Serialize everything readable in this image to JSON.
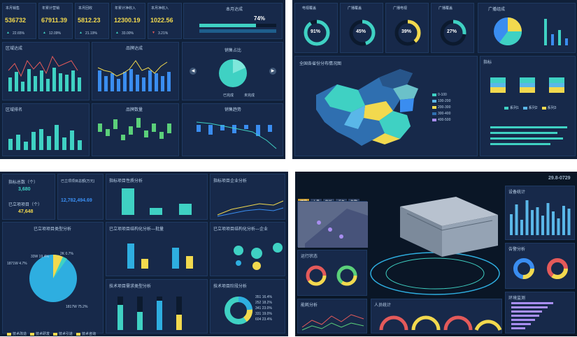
{
  "colors": {
    "teal": "#3fd1c3",
    "blue": "#3a8df0",
    "yellow": "#f2d94e",
    "red": "#e35a5a",
    "bg": "#102039",
    "panel": "#17294a",
    "green": "#5bd07a"
  },
  "d1": {
    "kpis": [
      {
        "label": "本月销售",
        "value": "536732",
        "delta": "22.65%",
        "dir": "up"
      },
      {
        "label": "年累计营销",
        "value": "67911.39",
        "delta": "12.09%",
        "dir": "up"
      },
      {
        "label": "本月回收",
        "value": "5812.23",
        "delta": "21.19%",
        "dir": "up"
      },
      {
        "label": "年累计净收入",
        "value": "12300.19",
        "delta": "33.00%",
        "dir": "up"
      },
      {
        "label": "本月净收入",
        "value": "1022.56",
        "delta": "3.21%",
        "dir": "down"
      }
    ],
    "progress": {
      "title": "本月达成",
      "value": "74%",
      "fraction": 0.74
    },
    "charts": {
      "region_trend": "区域达成",
      "brand_trend": "品牌达成",
      "sales_ratio": "销售占比",
      "region_bottom": "区域排名",
      "brand_bottom": "品牌数量",
      "sales_trend": "销售趋势"
    },
    "pie_legend": [
      "已完成",
      "未完成"
    ]
  },
  "d2": {
    "gauges": [
      {
        "label": "电视覆盖",
        "value": "91%",
        "pct": 0.91,
        "color": "#3fd1c3"
      },
      {
        "label": "广播覆盖",
        "value": "45%",
        "pct": 0.45,
        "color": "#3fd1c3"
      },
      {
        "label": "广播电视",
        "value": "39%",
        "pct": 0.39,
        "color": "#f2d94e"
      },
      {
        "label": "广播覆盖",
        "value": "27%",
        "pct": 0.27,
        "color": "#3fd1c3"
      }
    ],
    "pie_title": "广播组成",
    "map_title": "全国各省份分布情况图",
    "legend": [
      "0-100",
      "100-200",
      "200-300",
      "300-400",
      "400-500"
    ],
    "bars_title": "指标",
    "bar_legend": [
      "系列1",
      "系列2",
      "系列3"
    ]
  },
  "d3": {
    "stats": [
      {
        "label": "指标总数（个）",
        "value": "3,680"
      },
      {
        "label": "已立项项目（个）",
        "value": "47,648"
      }
    ],
    "total": {
      "label": "已立项项目总额(万元)",
      "value": "12,782,494.69"
    },
    "titles": {
      "dist": "指标项目性质分析",
      "enterprise": "指标项目企业分析",
      "pie": "已立项项目类型分析",
      "trend_a": "已立项项目结构化分析—批量",
      "trend_b": "已立项项目结构化分析—企业",
      "tech": "技术项目需求类型分析",
      "trend_c": "技术项目阶段分析"
    },
    "pie_labels": [
      "2K 0.7%",
      "33W 19.4%",
      "1871W 4.7%",
      "1817W 75.2%"
    ],
    "legend": [
      "技术改造",
      "技术研发",
      "技术引进",
      "技术咨询",
      "其他"
    ],
    "donut_labels": [
      "351 16.4%",
      "252 18.2%",
      "341 23.0%",
      "331 19.0%",
      "604 23.4%"
    ]
  },
  "d4": {
    "tag": "智慧建筑",
    "code": "29.8-0729",
    "side_titles": [
      "楼层",
      "人员",
      "能耗",
      "设备",
      "告警"
    ],
    "panel_titles": [
      "运行状态",
      "能耗分析",
      "设备统计",
      "告警分析",
      "环境监测",
      "人员统计"
    ]
  }
}
